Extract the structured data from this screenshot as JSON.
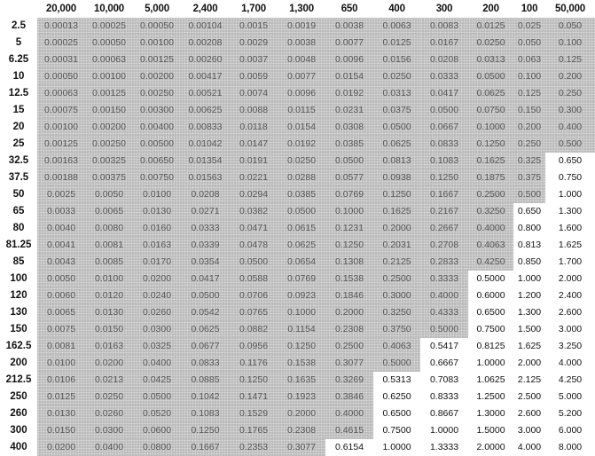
{
  "table": {
    "corner": "",
    "columns": [
      "20,000",
      "10,000",
      "5,000",
      "2,400",
      "1,700",
      "1,300",
      "650",
      "400",
      "300",
      "200",
      "100",
      "50,000"
    ],
    "shading_color": "#b9b9b9",
    "rows": [
      {
        "label": "2.5",
        "shaded_count": 12,
        "values": [
          "0.00013",
          "0.00025",
          "0.00050",
          "0.00104",
          "0.0015",
          "0.0019",
          "0.0038",
          "0.0063",
          "0.0083",
          "0.0125",
          "0.025",
          "0.050"
        ]
      },
      {
        "label": "5",
        "shaded_count": 12,
        "values": [
          "0.00025",
          "0.00050",
          "0.00100",
          "0.00208",
          "0.0029",
          "0.0038",
          "0.0077",
          "0.0125",
          "0.0167",
          "0.0250",
          "0.050",
          "0.100"
        ]
      },
      {
        "label": "6.25",
        "shaded_count": 12,
        "values": [
          "0.00031",
          "0.00063",
          "0.00125",
          "0.00260",
          "0.0037",
          "0.0048",
          "0.0096",
          "0.0156",
          "0.0208",
          "0.0313",
          "0.063",
          "0.125"
        ]
      },
      {
        "label": "10",
        "shaded_count": 12,
        "values": [
          "0.00050",
          "0.00100",
          "0.00200",
          "0.00417",
          "0.0059",
          "0.0077",
          "0.0154",
          "0.0250",
          "0.0333",
          "0.0500",
          "0.100",
          "0.200"
        ]
      },
      {
        "label": "12.5",
        "shaded_count": 12,
        "values": [
          "0.00063",
          "0.00125",
          "0.00250",
          "0.00521",
          "0.0074",
          "0.0096",
          "0.0192",
          "0.0313",
          "0.0417",
          "0.0625",
          "0.125",
          "0.250"
        ]
      },
      {
        "label": "15",
        "shaded_count": 12,
        "values": [
          "0.00075",
          "0.00150",
          "0.00300",
          "0.00625",
          "0.0088",
          "0.0115",
          "0.0231",
          "0.0375",
          "0.0500",
          "0.0750",
          "0.150",
          "0.300"
        ]
      },
      {
        "label": "20",
        "shaded_count": 12,
        "values": [
          "0.00100",
          "0.00200",
          "0.00400",
          "0.00833",
          "0.0118",
          "0.0154",
          "0.0308",
          "0.0500",
          "0.0667",
          "0.1000",
          "0.200",
          "0.400"
        ]
      },
      {
        "label": "25",
        "shaded_count": 12,
        "values": [
          "0.00125",
          "0.00250",
          "0.00500",
          "0.01042",
          "0.0147",
          "0.0192",
          "0.0385",
          "0.0625",
          "0.0833",
          "0.1250",
          "0.250",
          "0.500"
        ]
      },
      {
        "label": "32.5",
        "shaded_count": 11,
        "values": [
          "0.00163",
          "0.00325",
          "0.00650",
          "0.01354",
          "0.0191",
          "0.0250",
          "0.0500",
          "0.0813",
          "0.1083",
          "0.1625",
          "0.325",
          "0.650"
        ]
      },
      {
        "label": "37.5",
        "shaded_count": 11,
        "values": [
          "0.00188",
          "0.00375",
          "0.00750",
          "0.01563",
          "0.0221",
          "0.0288",
          "0.0577",
          "0.0938",
          "0.1250",
          "0.1875",
          "0.375",
          "0.750"
        ]
      },
      {
        "label": "50",
        "shaded_count": 11,
        "values": [
          "0.0025",
          "0.0050",
          "0.0100",
          "0.0208",
          "0.0294",
          "0.0385",
          "0.0769",
          "0.1250",
          "0.1667",
          "0.2500",
          "0.500",
          "1.000"
        ]
      },
      {
        "label": "65",
        "shaded_count": 10,
        "values": [
          "0.0033",
          "0.0065",
          "0.0130",
          "0.0271",
          "0.0382",
          "0.0500",
          "0.1000",
          "0.1625",
          "0.2167",
          "0.3250",
          "0.650",
          "1.300"
        ]
      },
      {
        "label": "80",
        "shaded_count": 10,
        "values": [
          "0.0040",
          "0.0080",
          "0.0160",
          "0.0333",
          "0.0471",
          "0.0615",
          "0.1231",
          "0.2000",
          "0.2667",
          "0.4000",
          "0.800",
          "1.600"
        ]
      },
      {
        "label": "81.25",
        "shaded_count": 10,
        "values": [
          "0.0041",
          "0.0081",
          "0.0163",
          "0.0339",
          "0.0478",
          "0.0625",
          "0.1250",
          "0.2031",
          "0.2708",
          "0.4063",
          "0.813",
          "1.625"
        ]
      },
      {
        "label": "85",
        "shaded_count": 10,
        "values": [
          "0.0043",
          "0.0085",
          "0.0170",
          "0.0354",
          "0.0500",
          "0.0654",
          "0.1308",
          "0.2125",
          "0.2833",
          "0.4250",
          "0.850",
          "1.700"
        ]
      },
      {
        "label": "100",
        "shaded_count": 9,
        "values": [
          "0.0050",
          "0.0100",
          "0.0200",
          "0.0417",
          "0.0588",
          "0.0769",
          "0.1538",
          "0.2500",
          "0.3333",
          "0.5000",
          "1.000",
          "2.000"
        ]
      },
      {
        "label": "120",
        "shaded_count": 9,
        "values": [
          "0.0060",
          "0.0120",
          "0.0240",
          "0.0500",
          "0.0706",
          "0.0923",
          "0.1846",
          "0.3000",
          "0.4000",
          "0.6000",
          "1.200",
          "2.400"
        ]
      },
      {
        "label": "130",
        "shaded_count": 9,
        "values": [
          "0.0065",
          "0.0130",
          "0.0260",
          "0.0542",
          "0.0765",
          "0.1000",
          "0.2000",
          "0.3250",
          "0.4333",
          "0.6500",
          "1.300",
          "2.600"
        ]
      },
      {
        "label": "150",
        "shaded_count": 9,
        "values": [
          "0.0075",
          "0.0150",
          "0.0300",
          "0.0625",
          "0.0882",
          "0.1154",
          "0.2308",
          "0.3750",
          "0.5000",
          "0.7500",
          "1.500",
          "3.000"
        ]
      },
      {
        "label": "162.5",
        "shaded_count": 8,
        "values": [
          "0.0081",
          "0.0163",
          "0.0325",
          "0.0677",
          "0.0956",
          "0.1250",
          "0.2500",
          "0.4063",
          "0.5417",
          "0.8125",
          "1.625",
          "3.250"
        ]
      },
      {
        "label": "200",
        "shaded_count": 8,
        "values": [
          "0.0100",
          "0.0200",
          "0.0400",
          "0.0833",
          "0.1176",
          "0.1538",
          "0.3077",
          "0.5000",
          "0.6667",
          "1.0000",
          "2.000",
          "4.000"
        ]
      },
      {
        "label": "212.5",
        "shaded_count": 7,
        "values": [
          "0.0106",
          "0.0213",
          "0.0425",
          "0.0885",
          "0.1250",
          "0.1635",
          "0.3269",
          "0.5313",
          "0.7083",
          "1.0625",
          "2.125",
          "4.250"
        ]
      },
      {
        "label": "250",
        "shaded_count": 7,
        "values": [
          "0.0125",
          "0.0250",
          "0.0500",
          "0.1042",
          "0.1471",
          "0.1923",
          "0.3846",
          "0.6250",
          "0.8333",
          "1.2500",
          "2.500",
          "5.000"
        ]
      },
      {
        "label": "260",
        "shaded_count": 7,
        "values": [
          "0.0130",
          "0.0260",
          "0.0520",
          "0.1083",
          "0.1529",
          "0.2000",
          "0.4000",
          "0.6500",
          "0.8667",
          "1.3000",
          "2.600",
          "5.200"
        ]
      },
      {
        "label": "300",
        "shaded_count": 7,
        "values": [
          "0.0150",
          "0.0300",
          "0.0600",
          "0.1250",
          "0.1765",
          "0.2308",
          "0.4615",
          "0.7500",
          "1.0000",
          "1.5000",
          "3.000",
          "6.000"
        ]
      },
      {
        "label": "400",
        "shaded_count": 6,
        "values": [
          "0.0200",
          "0.0400",
          "0.0800",
          "0.1667",
          "0.2353",
          "0.3077",
          "0.6154",
          "1.0000",
          "1.3333",
          "2.0000",
          "4.000",
          "8.000"
        ]
      }
    ]
  }
}
